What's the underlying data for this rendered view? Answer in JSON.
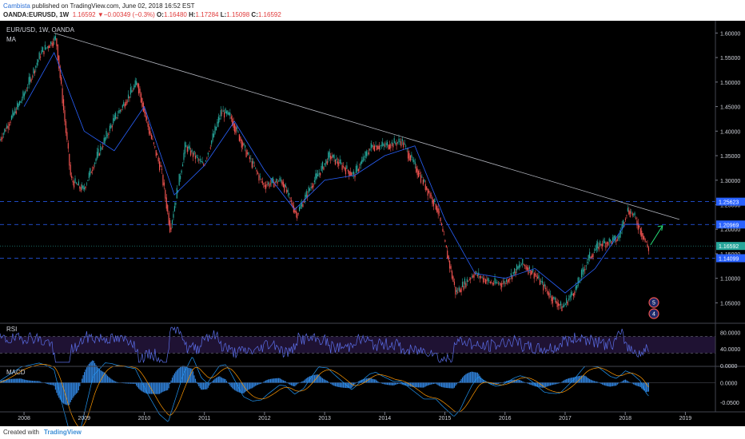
{
  "header": {
    "author": "Cambista",
    "published_text": " published on TradingView.com, June 02, 2018 16:52 EST",
    "symbol": "OANDA:EURUSD, 1W",
    "last": "1.16592",
    "change": "−0.00349 (−0.3%)",
    "o_label": "O:",
    "o": "1.16480",
    "h_label": "H:",
    "h": "1.17284",
    "l_label": "L:",
    "l": "1.15098",
    "c_label": "C:",
    "c": "1.16592"
  },
  "footer": {
    "created_with": "Created with",
    "brand": "TradingView"
  },
  "pane_labels": {
    "main": "EUR/USD, 1W, OANDA",
    "ma": "MA",
    "rsi": "RSI",
    "macd": "MACD"
  },
  "colors": {
    "up": "#26a69a",
    "down": "#ef5350",
    "ma": "#2962ff",
    "trend": "#b2b5be",
    "h_line": "#2962ff",
    "arrow": "#26c6da"
  },
  "badges": {
    "top": "1.25623",
    "mid": "1.20969",
    "last": "1.16592",
    "low": "1.14099"
  },
  "markers": {
    "a": "5",
    "b": "4"
  },
  "chart_data": [
    {
      "type": "line",
      "title": "EUR/USD, 1W, OANDA",
      "series": [
        {
          "name": "MA",
          "x": [
            2008.0,
            2008.5,
            2009.0,
            2009.5,
            2010.0,
            2010.5,
            2011.0,
            2011.5,
            2012.0,
            2012.5,
            2013.0,
            2013.5,
            2014.0,
            2014.5,
            2015.0,
            2015.5,
            2016.0,
            2016.5,
            2017.0,
            2017.5,
            2018.0,
            2018.3
          ],
          "values": [
            1.45,
            1.56,
            1.4,
            1.36,
            1.45,
            1.27,
            1.33,
            1.42,
            1.32,
            1.24,
            1.3,
            1.31,
            1.35,
            1.37,
            1.22,
            1.11,
            1.1,
            1.12,
            1.07,
            1.12,
            1.21,
            1.21
          ]
        }
      ],
      "closes": {
        "x": [
          2007.6,
          2008.0,
          2008.3,
          2008.55,
          2008.8,
          2009.0,
          2009.2,
          2009.5,
          2009.9,
          2010.1,
          2010.3,
          2010.45,
          2010.7,
          2011.0,
          2011.3,
          2011.45,
          2011.7,
          2012.0,
          2012.3,
          2012.55,
          2012.8,
          2013.1,
          2013.5,
          2013.8,
          2014.0,
          2014.3,
          2014.6,
          2014.9,
          2015.0,
          2015.2,
          2015.5,
          2015.8,
          2016.0,
          2016.3,
          2016.5,
          2016.8,
          2016.97,
          2017.2,
          2017.4,
          2017.6,
          2017.9,
          2018.05,
          2018.15,
          2018.3,
          2018.4
        ],
        "values": [
          1.38,
          1.47,
          1.56,
          1.59,
          1.3,
          1.28,
          1.34,
          1.42,
          1.5,
          1.4,
          1.32,
          1.2,
          1.37,
          1.33,
          1.44,
          1.43,
          1.36,
          1.29,
          1.3,
          1.23,
          1.29,
          1.35,
          1.31,
          1.37,
          1.37,
          1.38,
          1.31,
          1.24,
          1.18,
          1.07,
          1.11,
          1.09,
          1.09,
          1.13,
          1.11,
          1.06,
          1.04,
          1.08,
          1.14,
          1.17,
          1.18,
          1.24,
          1.23,
          1.19,
          1.16
        ]
      },
      "trendline": {
        "from": [
          2008.5,
          1.6
        ],
        "to": [
          2018.9,
          1.22
        ]
      },
      "horizontal_levels": [
        1.25623,
        1.20969,
        1.16592,
        1.14099
      ],
      "x_ticks": [
        "2008",
        "2009",
        "2010",
        "2011",
        "2012",
        "2013",
        "2014",
        "2015",
        "2016",
        "2017",
        "2018",
        "2019"
      ],
      "y_ticks": [
        "1.60000",
        "1.55000",
        "1.50000",
        "1.45000",
        "1.40000",
        "1.35000",
        "1.30000",
        "1.25000",
        "1.20000",
        "1.15000",
        "1.10000",
        "1.05000"
      ],
      "xlim": [
        2007.6,
        2019.5
      ],
      "ylim": [
        1.01,
        1.625
      ]
    },
    {
      "type": "line",
      "title": "RSI",
      "y_ticks": [
        "80.0000",
        "40.0000",
        "0.0000"
      ],
      "band": [
        30,
        70
      ],
      "ylim": [
        0,
        100
      ]
    },
    {
      "type": "line",
      "title": "MACD",
      "y_ticks": [
        "0.0000",
        "-0.0500"
      ],
      "ylim": [
        -0.075,
        0.04
      ]
    }
  ]
}
